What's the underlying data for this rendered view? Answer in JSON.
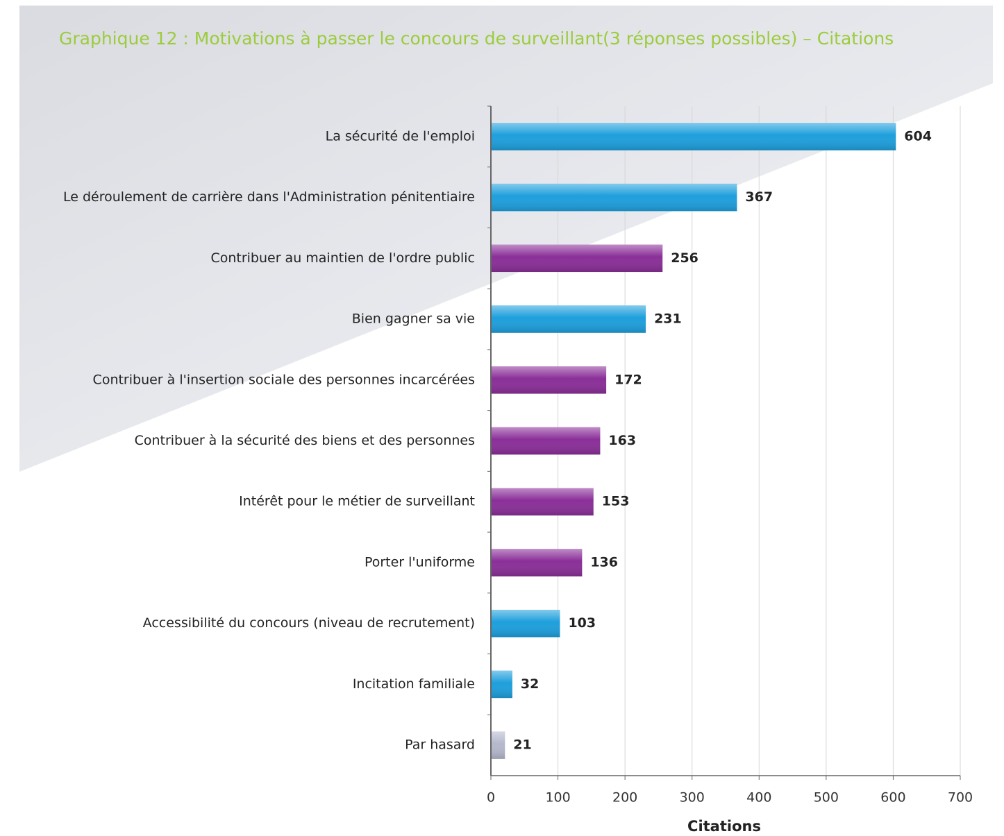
{
  "chart_data": {
    "type": "hbar",
    "title": "Graphique 12 : Motivations à passer le concours de surveillant(3 réponses possibles) – Citations",
    "categories": [
      "La sécurité de l'emploi",
      "Le déroulement de carrière dans l'Administration pénitentiaire",
      "Contribuer au maintien de l'ordre public",
      "Bien gagner sa vie",
      "Contribuer à l'insertion sociale des personnes incarcérées",
      "Contribuer à la sécurité des biens et des personnes",
      "Intérêt pour le métier de surveillant",
      "Porter l'uniforme",
      "Accessibilité du concours (niveau de recrutement)",
      "Incitation familiale",
      "Par hasard"
    ],
    "values": [
      604,
      367,
      256,
      231,
      172,
      163,
      153,
      136,
      103,
      32,
      21
    ],
    "colors": [
      "#1e9fdc",
      "#1e9fdc",
      "#8a2f98",
      "#1e9fdc",
      "#8a2f98",
      "#8a2f98",
      "#8a2f98",
      "#8a2f98",
      "#1e9fdc",
      "#1e9fdc",
      "#b4b8cc"
    ],
    "xlabel": "Citations",
    "xlim": [
      0,
      700
    ],
    "xticks": [
      0,
      100,
      200,
      300,
      400,
      500,
      600,
      700
    ],
    "grid": true
  }
}
